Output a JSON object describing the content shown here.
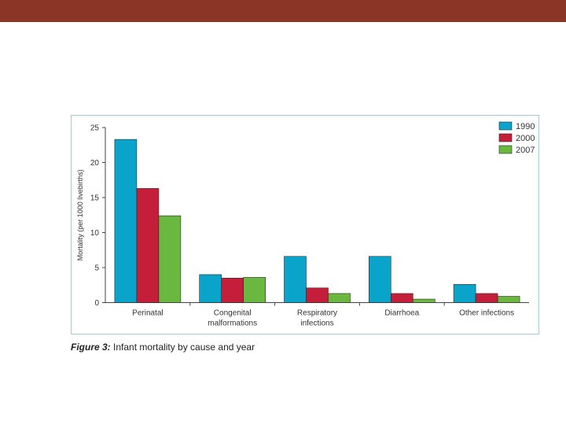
{
  "caption": {
    "label": "Figure 3:",
    "text": " Infant mortality by cause and year"
  },
  "colors": {
    "header_bar": "#8b3526",
    "frame_border": "#a9c8dc"
  },
  "chart_data": {
    "type": "bar",
    "title": "",
    "xlabel": "",
    "ylabel": "Mortality (per 1000 livebirths)",
    "ylim": [
      0,
      25
    ],
    "yticks": [
      0,
      5,
      10,
      15,
      20,
      25
    ],
    "grid": false,
    "legend_position": "top-right",
    "categories": [
      [
        "Perinatal"
      ],
      [
        "Congenital",
        "malformations"
      ],
      [
        "Respiratory",
        "infections"
      ],
      [
        "Diarrhoea"
      ],
      [
        "Other infections"
      ]
    ],
    "series": [
      {
        "name": "1990",
        "color": "#0aa3c9",
        "values": [
          23.3,
          4.0,
          6.6,
          6.6,
          2.6
        ]
      },
      {
        "name": "2000",
        "color": "#c41e3a",
        "values": [
          16.3,
          3.5,
          2.1,
          1.3,
          1.3
        ]
      },
      {
        "name": "2007",
        "color": "#6ab840",
        "values": [
          12.4,
          3.6,
          1.3,
          0.5,
          0.9
        ]
      }
    ]
  }
}
